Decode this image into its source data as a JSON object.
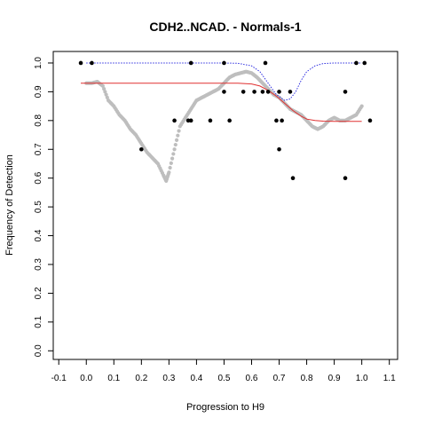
{
  "chart_data": {
    "type": "scatter",
    "title": "CDH2..NCAD. - Normals-1",
    "xlabel": "Progression to H9",
    "ylabel": "Frequency of Detection",
    "xlim": [
      -0.12,
      1.13
    ],
    "ylim": [
      -0.03,
      1.04
    ],
    "xticks": [
      "-0.1",
      "0.0",
      "0.1",
      "0.2",
      "0.3",
      "0.4",
      "0.5",
      "0.6",
      "0.7",
      "0.8",
      "0.9",
      "1.0",
      "1.1"
    ],
    "xtick_values": [
      -0.1,
      0.0,
      0.1,
      0.2,
      0.3,
      0.4,
      0.5,
      0.6,
      0.7,
      0.8,
      0.9,
      1.0,
      1.1
    ],
    "yticks": [
      "0.0",
      "0.1",
      "0.2",
      "0.3",
      "0.4",
      "0.5",
      "0.6",
      "0.7",
      "0.8",
      "0.9",
      "1.0"
    ],
    "ytick_values": [
      0.0,
      0.1,
      0.2,
      0.3,
      0.4,
      0.5,
      0.6,
      0.7,
      0.8,
      0.9,
      1.0
    ],
    "grid": false,
    "series": [
      {
        "kind": "points",
        "color": "#000000",
        "points": [
          [
            -0.02,
            1.0
          ],
          [
            0.02,
            1.0
          ],
          [
            0.38,
            1.0
          ],
          [
            0.5,
            1.0
          ],
          [
            0.65,
            1.0
          ],
          [
            0.98,
            1.0
          ],
          [
            1.01,
            1.0
          ],
          [
            0.5,
            0.9
          ],
          [
            0.57,
            0.9
          ],
          [
            0.61,
            0.9
          ],
          [
            0.64,
            0.9
          ],
          [
            0.66,
            0.9
          ],
          [
            0.7,
            0.9
          ],
          [
            0.74,
            0.9
          ],
          [
            0.94,
            0.9
          ],
          [
            0.32,
            0.8
          ],
          [
            0.37,
            0.8
          ],
          [
            0.38,
            0.8
          ],
          [
            0.45,
            0.8
          ],
          [
            0.52,
            0.8
          ],
          [
            0.69,
            0.8
          ],
          [
            0.71,
            0.8
          ],
          [
            1.03,
            0.8
          ],
          [
            0.2,
            0.7
          ],
          [
            0.7,
            0.7
          ],
          [
            0.75,
            0.6
          ],
          [
            0.94,
            0.6
          ]
        ]
      },
      {
        "kind": "smoothed-points",
        "color": "#bebebe",
        "x": [
          0.0,
          0.02,
          0.04,
          0.06,
          0.08,
          0.1,
          0.12,
          0.14,
          0.16,
          0.18,
          0.2,
          0.22,
          0.24,
          0.26,
          0.28,
          0.29,
          0.3,
          0.32,
          0.34,
          0.36,
          0.38,
          0.4,
          0.42,
          0.44,
          0.46,
          0.48,
          0.5,
          0.52,
          0.54,
          0.56,
          0.58,
          0.6,
          0.62,
          0.64,
          0.66,
          0.68,
          0.7,
          0.72,
          0.74,
          0.76,
          0.78,
          0.8,
          0.82,
          0.84,
          0.86,
          0.88,
          0.9,
          0.92,
          0.94,
          0.96,
          0.98,
          1.0
        ],
        "y": [
          0.93,
          0.93,
          0.935,
          0.92,
          0.87,
          0.85,
          0.82,
          0.8,
          0.77,
          0.75,
          0.72,
          0.69,
          0.67,
          0.65,
          0.61,
          0.59,
          0.62,
          0.7,
          0.78,
          0.81,
          0.84,
          0.87,
          0.88,
          0.89,
          0.9,
          0.91,
          0.93,
          0.95,
          0.96,
          0.965,
          0.97,
          0.965,
          0.95,
          0.93,
          0.91,
          0.89,
          0.88,
          0.86,
          0.84,
          0.83,
          0.82,
          0.8,
          0.78,
          0.77,
          0.78,
          0.8,
          0.81,
          0.8,
          0.8,
          0.81,
          0.82,
          0.85
        ]
      },
      {
        "kind": "line",
        "style": "solid",
        "color": "#e03030",
        "x": [
          -0.02,
          0.0,
          0.1,
          0.2,
          0.3,
          0.4,
          0.5,
          0.55,
          0.6,
          0.63,
          0.66,
          0.69,
          0.72,
          0.75,
          0.78,
          0.8,
          0.83,
          0.86,
          0.9,
          0.95,
          1.0
        ],
        "y": [
          0.93,
          0.93,
          0.93,
          0.93,
          0.93,
          0.93,
          0.93,
          0.93,
          0.927,
          0.92,
          0.905,
          0.885,
          0.86,
          0.835,
          0.815,
          0.805,
          0.8,
          0.798,
          0.797,
          0.797,
          0.797
        ]
      },
      {
        "kind": "line",
        "style": "dotted",
        "color": "#3030e0",
        "x": [
          0.0,
          0.1,
          0.2,
          0.3,
          0.4,
          0.5,
          0.55,
          0.6,
          0.63,
          0.66,
          0.69,
          0.72,
          0.74,
          0.76,
          0.78,
          0.8,
          0.83,
          0.86,
          0.9,
          0.95,
          1.0
        ],
        "y": [
          1.0,
          1.0,
          1.0,
          1.0,
          1.0,
          1.0,
          0.999,
          0.99,
          0.97,
          0.93,
          0.89,
          0.87,
          0.875,
          0.9,
          0.94,
          0.97,
          0.99,
          0.998,
          1.0,
          1.0,
          1.0
        ]
      }
    ]
  }
}
